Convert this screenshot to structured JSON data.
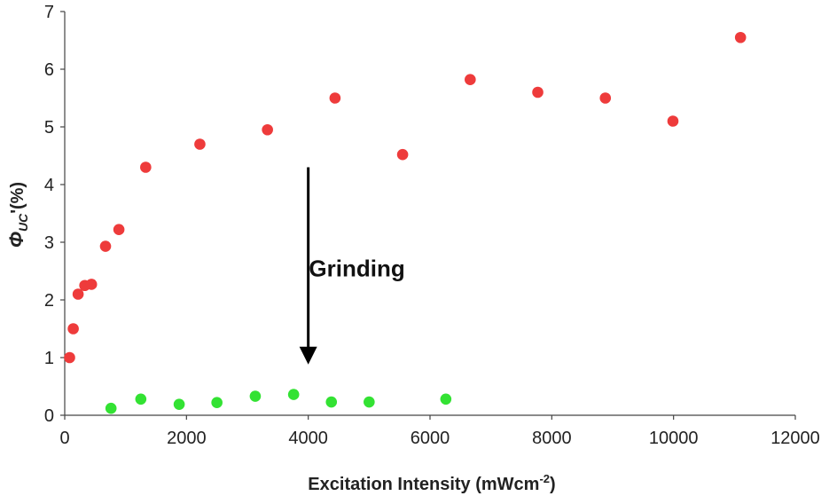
{
  "chart_data": {
    "type": "scatter",
    "title": "",
    "xlabel": "Excitation Intensity (mWcm",
    "xlabel_sup": "-2",
    "xlabel_close": ")",
    "ylabel_main": "Φ",
    "ylabel_sub": "UC",
    "ylabel_rest": "'(%)",
    "xlim": [
      0,
      12000
    ],
    "ylim": [
      0,
      7
    ],
    "xticks": [
      0,
      2000,
      4000,
      6000,
      8000,
      10000,
      12000
    ],
    "yticks": [
      0,
      1,
      2,
      3,
      4,
      5,
      6,
      7
    ],
    "grid": false,
    "legend": "none",
    "series": [
      {
        "color": "#ee3b3b",
        "points": [
          [
            80,
            1.0
          ],
          [
            140,
            1.5
          ],
          [
            220,
            2.1
          ],
          [
            330,
            2.25
          ],
          [
            440,
            2.27
          ],
          [
            670,
            2.93
          ],
          [
            890,
            3.22
          ],
          [
            1330,
            4.3
          ],
          [
            2220,
            4.7
          ],
          [
            3330,
            4.95
          ],
          [
            4440,
            5.5
          ],
          [
            5550,
            4.52
          ],
          [
            6660,
            5.82
          ],
          [
            7770,
            5.6
          ],
          [
            8880,
            5.5
          ],
          [
            9990,
            5.1
          ],
          [
            11100,
            6.55
          ]
        ]
      },
      {
        "color": "#33e233",
        "points": [
          [
            760,
            0.12
          ],
          [
            1250,
            0.28
          ],
          [
            1880,
            0.19
          ],
          [
            2500,
            0.22
          ],
          [
            3130,
            0.33
          ],
          [
            3760,
            0.36
          ],
          [
            4380,
            0.23
          ],
          [
            5000,
            0.23
          ],
          [
            6260,
            0.28
          ]
        ]
      }
    ],
    "annotation": {
      "text": "Grinding",
      "text_x": 4800,
      "text_y": 2.55,
      "arrow_x": 4000,
      "arrow_from_y": 4.3,
      "arrow_to_y": 0.88
    }
  }
}
